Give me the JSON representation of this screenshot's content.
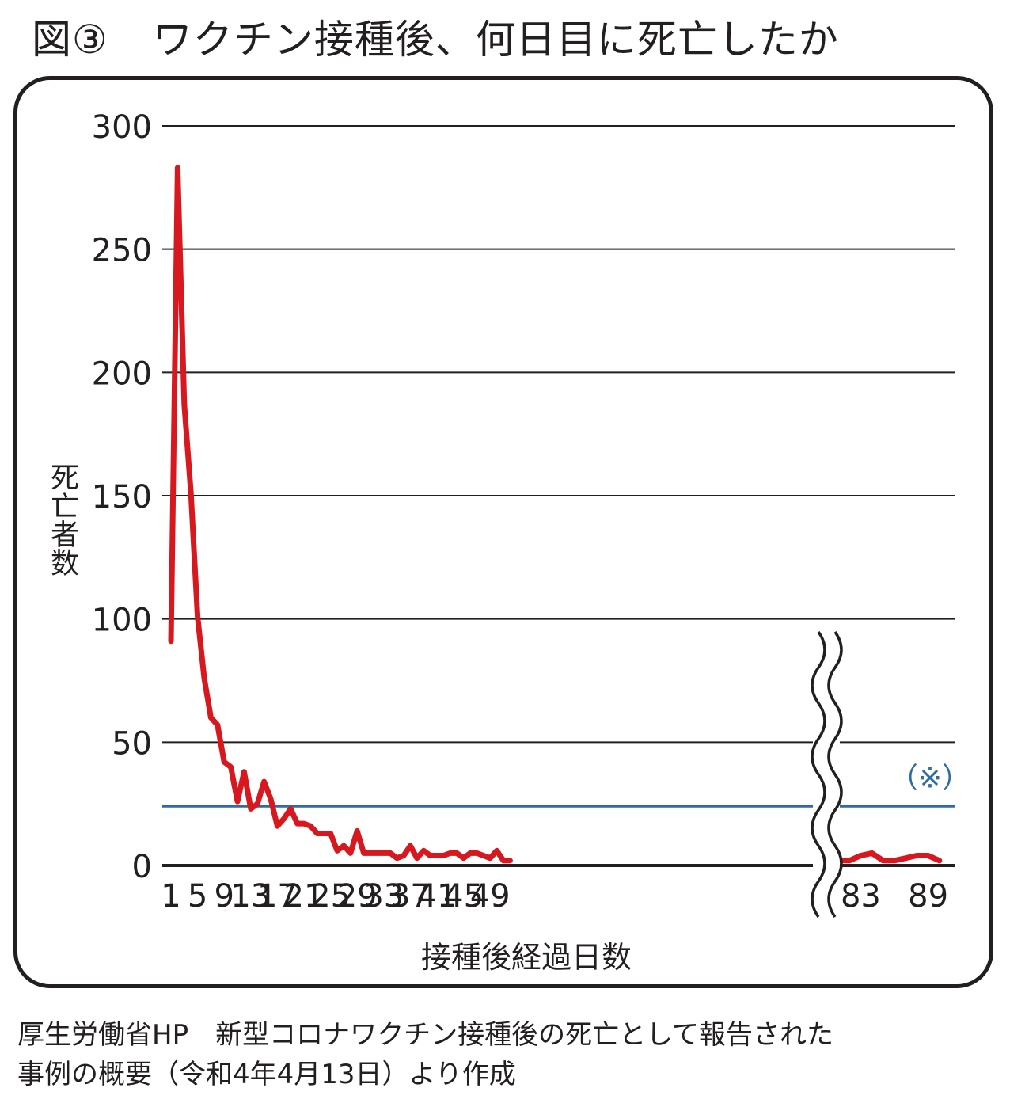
{
  "title": {
    "figure": "図③",
    "text": "ワクチン接種後、何日目に死亡したか"
  },
  "source": {
    "line1": "厚生労働省HP　新型コロナワクチン接種後の死亡として報告された",
    "line2": "事例の概要（令和4年4月13日）より作成"
  },
  "colors": {
    "series": "#d7191f",
    "reference": "#2f6ca5",
    "text": "#231f20",
    "grid": "#231f20"
  },
  "chart_data": {
    "type": "line",
    "title": "ワクチン接種後、何日目に死亡したか",
    "ylabel": "死亡者数",
    "xlabel": "接種後経過日数",
    "ylim": [
      0,
      300
    ],
    "yticks": [
      0,
      50,
      100,
      150,
      200,
      250,
      300
    ],
    "grid": true,
    "xticks": [
      "1",
      "5",
      "9",
      "13",
      "17",
      "21",
      "25",
      "29",
      "33",
      "37",
      "41",
      "45",
      "49",
      "83",
      "89"
    ],
    "axis_break": {
      "after": 52,
      "before": 81
    },
    "series": [
      {
        "segment": "days 1-52",
        "x": [
          1,
          2,
          3,
          4,
          5,
          6,
          7,
          8,
          9,
          10,
          11,
          12,
          13,
          14,
          15,
          16,
          17,
          18,
          19,
          20,
          21,
          22,
          23,
          24,
          25,
          26,
          27,
          28,
          29,
          30,
          31,
          32,
          33,
          34,
          35,
          36,
          37,
          38,
          39,
          40,
          41,
          42,
          43,
          44,
          45,
          46,
          47,
          48,
          49,
          50,
          51,
          52
        ],
        "values": [
          91,
          283,
          187,
          151,
          101,
          76,
          60,
          57,
          42,
          40,
          26,
          38,
          23,
          25,
          34,
          27,
          16,
          19,
          23,
          17,
          17,
          16,
          13,
          13,
          13,
          6,
          8,
          5,
          14,
          5,
          5,
          5,
          5,
          5,
          3,
          4,
          8,
          3,
          6,
          4,
          4,
          4,
          5,
          5,
          3,
          5,
          5,
          4,
          3,
          6,
          2,
          2
        ]
      },
      {
        "segment": "days 81-90",
        "x": [
          81,
          82,
          83,
          84,
          85,
          86,
          87,
          88,
          89,
          90
        ],
        "values": [
          2,
          2,
          4,
          5,
          2,
          2,
          3,
          4,
          4,
          2
        ]
      }
    ],
    "reference_line": {
      "value": 24,
      "label": "（※）"
    }
  }
}
